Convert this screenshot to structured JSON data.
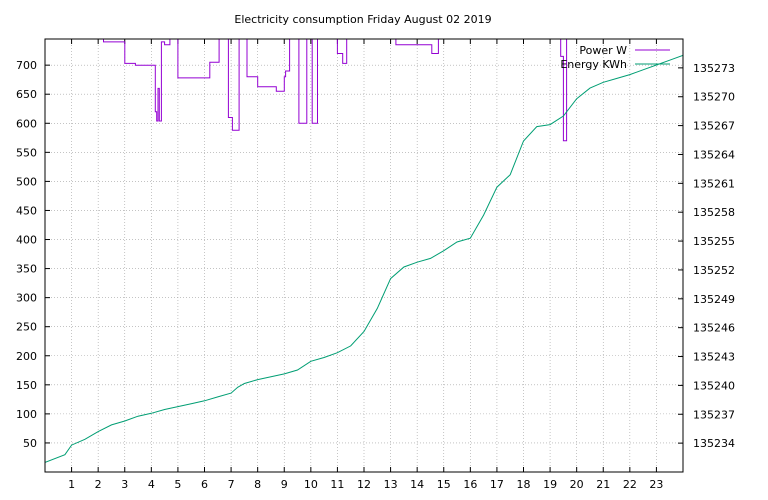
{
  "chart_data": {
    "type": "line",
    "title": "Electricity consumption Friday August 02 2019",
    "xlabel": "",
    "ylabel": "",
    "xlim": [
      0,
      24
    ],
    "ylim": [
      0,
      745
    ],
    "y2lim": [
      135231.0,
      135276.0
    ],
    "grid": true,
    "legend_position": "top-right",
    "x_ticks": [
      "1",
      "2",
      "3",
      "4",
      "5",
      "6",
      "7",
      "8",
      "9",
      "10",
      "11",
      "12",
      "13",
      "14",
      "15",
      "16",
      "17",
      "18",
      "19",
      "20",
      "21",
      "22",
      "23"
    ],
    "y_ticks": [
      "50",
      "100",
      "150",
      "200",
      "250",
      "300",
      "350",
      "400",
      "450",
      "500",
      "550",
      "600",
      "650",
      "700"
    ],
    "y2_ticks": [
      "135234",
      "135237",
      "135240",
      "135243",
      "135246",
      "135249",
      "135252",
      "135255",
      "135258",
      "135261",
      "135264",
      "135267",
      "135270",
      "135273"
    ],
    "series": [
      {
        "name": "Power W",
        "color": "#9400d3",
        "axis": "y1",
        "x": [
          0,
          1.2,
          2.2,
          2.2,
          2.55,
          2.55,
          3.0,
          3.0,
          3.4,
          3.4,
          3.95,
          3.95,
          4.15,
          4.15,
          4.2,
          4.2,
          4.25,
          4.25,
          4.3,
          4.3,
          4.38,
          4.38,
          4.5,
          4.5,
          4.7,
          4.7,
          5.0,
          5.0,
          6.2,
          6.2,
          6.55,
          6.55,
          6.9,
          6.9,
          7.05,
          7.05,
          7.3,
          7.3,
          7.6,
          7.6,
          8.0,
          8.0,
          8.7,
          8.7,
          9.0,
          9.0,
          9.05,
          9.05,
          9.2,
          9.2,
          9.55,
          9.55,
          9.85,
          9.85,
          10.05,
          10.05,
          10.25,
          10.25,
          11.0,
          11.0,
          11.2,
          11.2,
          11.35,
          11.35,
          13.2,
          13.2,
          14.55,
          14.55,
          14.8,
          14.8,
          19.4,
          19.4,
          19.5,
          19.5,
          19.62,
          19.62,
          24.0
        ],
        "y": [
          745,
          745,
          745,
          740,
          740,
          740,
          740,
          703,
          703,
          700,
          700,
          700,
          700,
          620,
          620,
          604,
          604,
          660,
          660,
          604,
          604,
          740,
          740,
          735,
          735,
          745,
          745,
          678,
          678,
          705,
          705,
          745,
          745,
          610,
          610,
          588,
          588,
          745,
          745,
          680,
          680,
          663,
          663,
          655,
          655,
          680,
          680,
          690,
          690,
          745,
          745,
          600,
          600,
          745,
          745,
          600,
          600,
          745,
          745,
          720,
          720,
          703,
          703,
          745,
          745,
          735,
          735,
          720,
          720,
          745,
          745,
          715,
          715,
          570,
          570,
          745,
          745
        ]
      },
      {
        "name": "Energy KWh",
        "color": "#009e73",
        "axis": "y2",
        "x": [
          0,
          0.75,
          1.0,
          1.5,
          2.0,
          2.5,
          3.0,
          3.5,
          4.0,
          4.5,
          5.0,
          5.5,
          6.0,
          6.5,
          7.0,
          7.25,
          7.5,
          8.0,
          8.5,
          9.0,
          9.5,
          10.0,
          10.5,
          11.0,
          11.5,
          12.0,
          12.5,
          13.0,
          13.5,
          14.0,
          14.5,
          15.0,
          15.5,
          16.0,
          16.5,
          17.0,
          17.5,
          18.0,
          18.5,
          19.0,
          19.5,
          20.0,
          20.5,
          21.0,
          21.5,
          22.0,
          22.5,
          23.0,
          23.5,
          24.0
        ],
        "y": [
          135232.0,
          135232.8,
          135233.8,
          135234.4,
          135235.2,
          135235.9,
          135236.3,
          135236.8,
          135237.1,
          135237.5,
          135237.8,
          135238.1,
          135238.4,
          135238.8,
          135239.2,
          135239.8,
          135240.2,
          135240.6,
          135240.9,
          135241.2,
          135241.6,
          135242.5,
          135242.9,
          135243.4,
          135244.1,
          135245.6,
          135248.0,
          135251.1,
          135252.3,
          135252.8,
          135253.2,
          135254.0,
          135254.9,
          135255.3,
          135257.7,
          135260.6,
          135261.9,
          135265.4,
          135266.9,
          135267.1,
          135268.0,
          135269.8,
          135270.9,
          135271.5,
          135271.9,
          135272.3,
          135272.8,
          135273.3,
          135273.8,
          135274.3
        ]
      }
    ]
  }
}
